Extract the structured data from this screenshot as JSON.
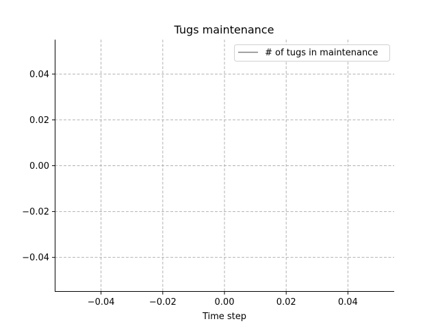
{
  "chart_data": {
    "type": "line",
    "title": "Tugs maintenance",
    "xlabel": "Time step",
    "ylabel": "",
    "xlim": [
      -0.055,
      0.055
    ],
    "ylim": [
      -0.055,
      0.055
    ],
    "xticks": [
      -0.04,
      -0.02,
      0.0,
      0.02,
      0.04
    ],
    "xtick_labels": [
      "−0.04",
      "−0.02",
      "0.00",
      "0.02",
      "0.04"
    ],
    "yticks": [
      0.04,
      0.02,
      0.0,
      -0.02,
      -0.04
    ],
    "ytick_labels": [
      "0.04",
      "0.02",
      "0.00",
      "−0.02",
      "−0.04"
    ],
    "grid": true,
    "grid_style": "dashed",
    "legend_position": "top-right",
    "series": [
      {
        "name": "# of tugs in maintenance",
        "color": "#808080",
        "x": [],
        "y": []
      }
    ]
  }
}
